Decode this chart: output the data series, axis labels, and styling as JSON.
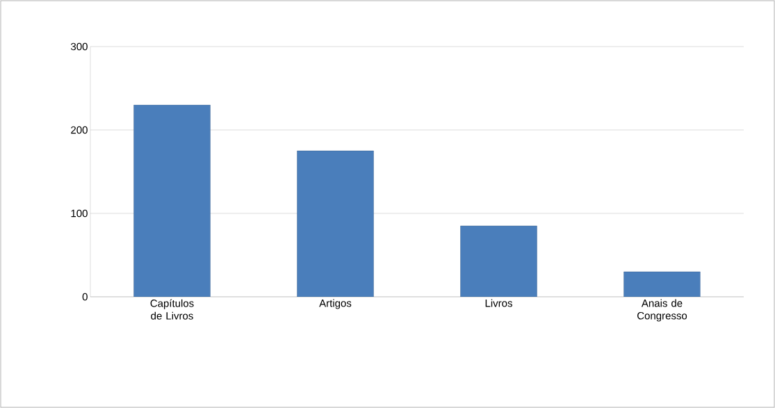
{
  "chart_data": {
    "type": "bar",
    "categories": [
      "Capítulos de Livros",
      "Artigos",
      "Livros",
      "Anais de Congresso"
    ],
    "values": [
      230,
      175,
      85,
      30
    ],
    "color": "#4a7ebb",
    "ylim": [
      0,
      300
    ],
    "yticks": [
      0,
      100,
      200,
      300
    ],
    "grid": "y"
  }
}
